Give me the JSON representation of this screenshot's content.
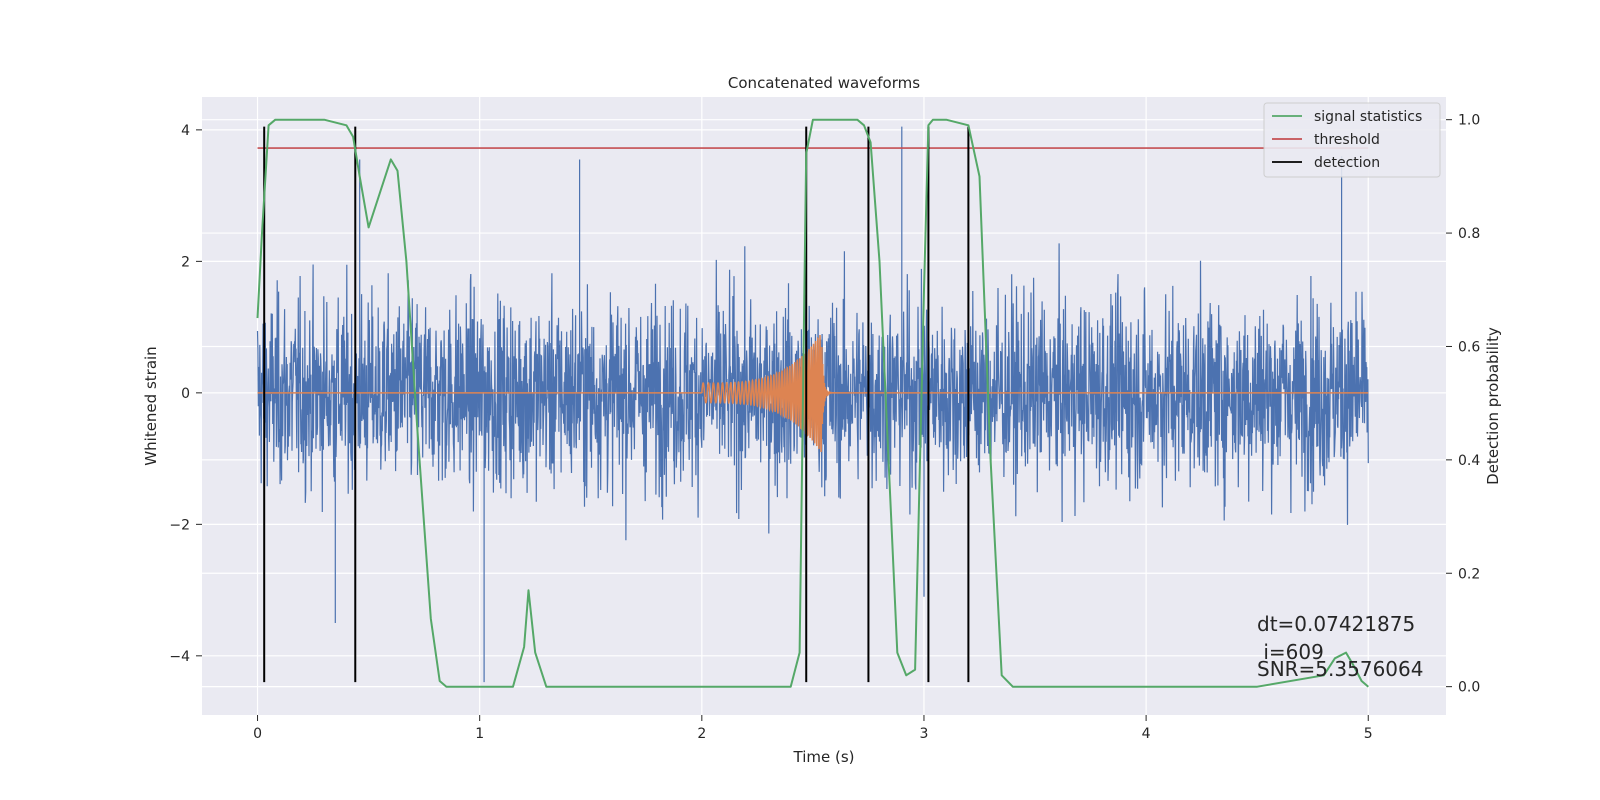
{
  "chart_data": {
    "type": "line",
    "title": "Concatenated waveforms",
    "xlabel": "Time (s)",
    "ylabel": "Whitened strain",
    "ylabel_right": "Detection probability",
    "xlim": [
      -0.25,
      5.35
    ],
    "ylim": [
      -4.9,
      4.5
    ],
    "ylim_right": [
      -0.05,
      1.04
    ],
    "x_ticks": [
      "0",
      "1",
      "2",
      "3",
      "4",
      "5"
    ],
    "y_ticks": [
      "−4",
      "−2",
      "0",
      "2",
      "4"
    ],
    "y_right_ticks": [
      "0.0",
      "0.2",
      "0.4",
      "0.6",
      "0.8",
      "1.0"
    ],
    "grid": true,
    "legend_position": "top-right",
    "colors": {
      "strain": "#4c72b0",
      "template": "#dd8452",
      "signal_statistics": "#55a868",
      "threshold": "#c44e52",
      "detection": "#000000",
      "background": "#eaeaf2"
    },
    "series": [
      {
        "name": "signal statistics",
        "axis": "right",
        "x": [
          0.0,
          0.02,
          0.05,
          0.08,
          0.1,
          0.2,
          0.3,
          0.4,
          0.43,
          0.46,
          0.5,
          0.55,
          0.6,
          0.63,
          0.67,
          0.72,
          0.78,
          0.82,
          0.85,
          0.9,
          1.0,
          1.15,
          1.2,
          1.22,
          1.25,
          1.3,
          1.4,
          1.6,
          2.0,
          2.2,
          2.4,
          2.44,
          2.47,
          2.5,
          2.6,
          2.7,
          2.73,
          2.76,
          2.8,
          2.88,
          2.92,
          2.96,
          3.0,
          3.02,
          3.04,
          3.1,
          3.2,
          3.25,
          3.3,
          3.35,
          3.4,
          3.6,
          4.0,
          4.5,
          4.8,
          4.85,
          4.9,
          4.93,
          4.97,
          5.0
        ],
        "y": [
          0.65,
          0.8,
          0.99,
          1.0,
          1.0,
          1.0,
          1.0,
          0.99,
          0.97,
          0.9,
          0.81,
          0.87,
          0.93,
          0.91,
          0.75,
          0.45,
          0.12,
          0.01,
          0.0,
          0.0,
          0.0,
          0.0,
          0.07,
          0.17,
          0.06,
          0.0,
          0.0,
          0.0,
          0.0,
          0.0,
          0.0,
          0.06,
          0.94,
          1.0,
          1.0,
          1.0,
          0.99,
          0.96,
          0.75,
          0.06,
          0.02,
          0.03,
          0.7,
          0.99,
          1.0,
          1.0,
          0.99,
          0.9,
          0.4,
          0.02,
          0.0,
          0.0,
          0.0,
          0.0,
          0.02,
          0.05,
          0.06,
          0.04,
          0.01,
          0.0
        ]
      },
      {
        "name": "threshold",
        "axis": "right",
        "x": [
          0.0,
          5.0
        ],
        "y": [
          0.95,
          0.95
        ]
      },
      {
        "name": "detection",
        "axis": "left",
        "x": [
          0.03,
          0.44,
          2.47,
          2.75,
          3.02,
          3.2
        ],
        "ymin": -4.4,
        "ymax": 4.05
      },
      {
        "name": "",
        "axis": "left",
        "kind": "noise",
        "x_range": [
          0.0,
          5.0
        ],
        "amplitude_std": 1.0,
        "peak_max": 4.05,
        "peak_min": -4.4
      },
      {
        "name": "",
        "axis": "left",
        "kind": "chirp",
        "x_range": [
          2.0,
          2.55
        ],
        "amplitude_start": 0.15,
        "amplitude_peak": 0.92
      }
    ],
    "annotations": [
      "dt=0.07421875",
      " i=609",
      "SNR=5.3576064"
    ]
  }
}
